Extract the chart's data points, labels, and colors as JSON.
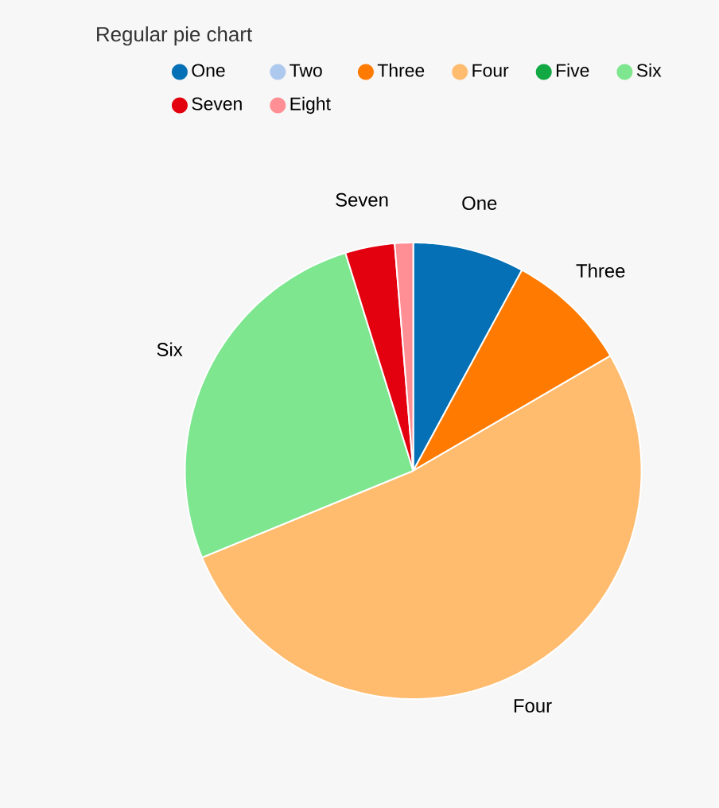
{
  "chart_data": {
    "type": "pie",
    "title": "Regular pie chart",
    "categories": [
      "One",
      "Two",
      "Three",
      "Four",
      "Five",
      "Six",
      "Seven",
      "Eight"
    ],
    "values": [
      7.9,
      0,
      8.7,
      52.2,
      0,
      26.4,
      3.5,
      1.3
    ],
    "colors": [
      "#0570b5",
      "#aec9ee",
      "#ff7a00",
      "#ffbb6e",
      "#12a843",
      "#7de68f",
      "#e3000f",
      "#ff8f94"
    ],
    "legend": "top"
  }
}
